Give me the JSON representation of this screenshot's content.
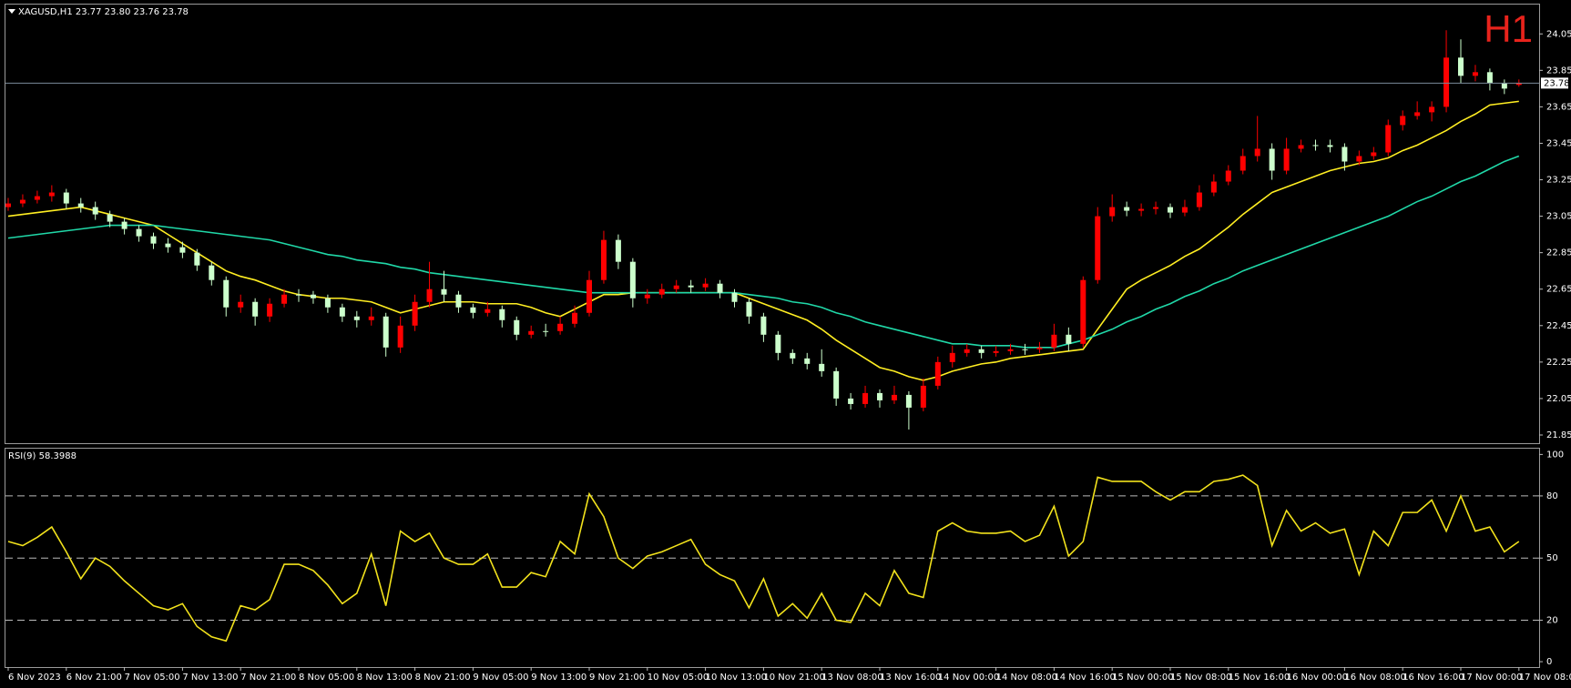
{
  "chart_data": [
    {
      "type": "candlestick",
      "title": "XAGUSD,H1  23.77 23.80 23.76 23.78",
      "corner_label": "H1",
      "up_color": "#ff0000",
      "down_color": "#ccffcc",
      "categories": [
        "6 Nov 2023",
        null,
        null,
        null,
        "6 Nov 21:00",
        null,
        null,
        null,
        "7 Nov 05:00",
        null,
        null,
        null,
        "7 Nov 13:00",
        null,
        null,
        null,
        "7 Nov 21:00",
        null,
        null,
        null,
        "8 Nov 05:00",
        null,
        null,
        null,
        "8 Nov 13:00",
        null,
        null,
        null,
        "8 Nov 21:00",
        null,
        null,
        null,
        "9 Nov 05:00",
        null,
        null,
        null,
        "9 Nov 13:00",
        null,
        null,
        null,
        "9 Nov 21:00",
        null,
        null,
        null,
        "10 Nov 05:00",
        null,
        null,
        null,
        "10 Nov 13:00",
        null,
        null,
        null,
        "10 Nov 21:00",
        null,
        null,
        null,
        "13 Nov 08:00",
        null,
        null,
        null,
        "13 Nov 16:00",
        null,
        null,
        null,
        "14 Nov 00:00",
        null,
        null,
        null,
        "14 Nov 08:00",
        null,
        null,
        null,
        "14 Nov 16:00",
        null,
        null,
        null,
        "15 Nov 00:00",
        null,
        null,
        null,
        "15 Nov 08:00",
        null,
        null,
        null,
        "15 Nov 16:00",
        null,
        null,
        null,
        "16 Nov 00:00",
        null,
        null,
        null,
        "16 Nov 08:00",
        null,
        null,
        null,
        "16 Nov 16:00",
        null,
        null,
        null,
        "17 Nov 00:00",
        null,
        null,
        null,
        "17 Nov 08:00"
      ],
      "ohlc": [
        [
          23.1,
          23.15,
          23.08,
          23.12
        ],
        [
          23.12,
          23.17,
          23.1,
          23.14
        ],
        [
          23.14,
          23.19,
          23.12,
          23.16
        ],
        [
          23.16,
          23.22,
          23.13,
          23.18
        ],
        [
          23.18,
          23.2,
          23.09,
          23.12
        ],
        [
          23.12,
          23.15,
          23.07,
          23.1
        ],
        [
          23.1,
          23.13,
          23.03,
          23.06
        ],
        [
          23.06,
          23.08,
          22.99,
          23.02
        ],
        [
          23.02,
          23.04,
          22.95,
          22.98
        ],
        [
          22.98,
          23.0,
          22.91,
          22.94
        ],
        [
          22.94,
          22.96,
          22.87,
          22.9
        ],
        [
          22.9,
          22.93,
          22.85,
          22.88
        ],
        [
          22.88,
          22.91,
          22.82,
          22.85
        ],
        [
          22.85,
          22.87,
          22.75,
          22.78
        ],
        [
          22.78,
          22.8,
          22.67,
          22.7
        ],
        [
          22.7,
          22.72,
          22.5,
          22.55
        ],
        [
          22.55,
          22.62,
          22.52,
          22.58
        ],
        [
          22.58,
          22.6,
          22.45,
          22.5
        ],
        [
          22.5,
          22.6,
          22.47,
          22.57
        ],
        [
          22.57,
          22.65,
          22.55,
          22.62
        ],
        [
          22.62,
          22.65,
          22.58,
          22.62
        ],
        [
          22.62,
          22.64,
          22.57,
          22.6
        ],
        [
          22.6,
          22.62,
          22.52,
          22.55
        ],
        [
          22.55,
          22.57,
          22.47,
          22.5
        ],
        [
          22.5,
          22.53,
          22.44,
          22.48
        ],
        [
          22.48,
          22.55,
          22.45,
          22.5
        ],
        [
          22.5,
          22.52,
          22.28,
          22.33
        ],
        [
          22.33,
          22.5,
          22.3,
          22.45
        ],
        [
          22.45,
          22.62,
          22.42,
          22.58
        ],
        [
          22.58,
          22.8,
          22.55,
          22.65
        ],
        [
          22.65,
          22.75,
          22.58,
          22.62
        ],
        [
          22.62,
          22.64,
          22.52,
          22.55
        ],
        [
          22.55,
          22.57,
          22.49,
          22.52
        ],
        [
          22.52,
          22.58,
          22.5,
          22.54
        ],
        [
          22.54,
          22.56,
          22.44,
          22.48
        ],
        [
          22.48,
          22.5,
          22.37,
          22.4
        ],
        [
          22.4,
          22.45,
          22.38,
          22.42
        ],
        [
          22.42,
          22.46,
          22.39,
          22.42
        ],
        [
          22.42,
          22.5,
          22.4,
          22.46
        ],
        [
          22.46,
          22.56,
          22.44,
          22.52
        ],
        [
          22.52,
          22.75,
          22.5,
          22.7
        ],
        [
          22.7,
          22.97,
          22.68,
          22.92
        ],
        [
          22.92,
          22.95,
          22.76,
          22.8
        ],
        [
          22.8,
          22.82,
          22.55,
          22.6
        ],
        [
          22.6,
          22.65,
          22.57,
          22.62
        ],
        [
          22.62,
          22.68,
          22.6,
          22.65
        ],
        [
          22.65,
          22.7,
          22.63,
          22.67
        ],
        [
          22.67,
          22.7,
          22.63,
          22.66
        ],
        [
          22.66,
          22.71,
          22.64,
          22.68
        ],
        [
          22.68,
          22.7,
          22.6,
          22.63
        ],
        [
          22.63,
          22.65,
          22.55,
          22.58
        ],
        [
          22.58,
          22.6,
          22.46,
          22.5
        ],
        [
          22.5,
          22.52,
          22.36,
          22.4
        ],
        [
          22.4,
          22.42,
          22.26,
          22.3
        ],
        [
          22.3,
          22.32,
          22.24,
          22.27
        ],
        [
          22.27,
          22.3,
          22.21,
          22.24
        ],
        [
          22.24,
          22.32,
          22.17,
          22.2
        ],
        [
          22.2,
          22.22,
          22.01,
          22.05
        ],
        [
          22.05,
          22.08,
          21.99,
          22.02
        ],
        [
          22.02,
          22.12,
          22.0,
          22.08
        ],
        [
          22.08,
          22.1,
          22.0,
          22.04
        ],
        [
          22.04,
          22.12,
          22.02,
          22.07
        ],
        [
          22.07,
          22.09,
          21.88,
          22.0
        ],
        [
          22.0,
          22.16,
          21.98,
          22.12
        ],
        [
          22.12,
          22.28,
          22.1,
          22.25
        ],
        [
          22.25,
          22.34,
          22.22,
          22.3
        ],
        [
          22.3,
          22.35,
          22.28,
          22.32
        ],
        [
          22.32,
          22.34,
          22.27,
          22.3
        ],
        [
          22.3,
          22.34,
          22.28,
          22.31
        ],
        [
          22.31,
          22.35,
          22.29,
          22.32
        ],
        [
          22.32,
          22.35,
          22.29,
          22.32
        ],
        [
          22.32,
          22.36,
          22.3,
          22.33
        ],
        [
          22.33,
          22.46,
          22.31,
          22.4
        ],
        [
          22.4,
          22.44,
          22.31,
          22.35
        ],
        [
          22.35,
          22.72,
          22.33,
          22.7
        ],
        [
          22.7,
          23.1,
          22.68,
          23.05
        ],
        [
          23.05,
          23.17,
          23.02,
          23.1
        ],
        [
          23.1,
          23.13,
          23.05,
          23.08
        ],
        [
          23.08,
          23.12,
          23.05,
          23.09
        ],
        [
          23.09,
          23.13,
          23.06,
          23.1
        ],
        [
          23.1,
          23.12,
          23.04,
          23.07
        ],
        [
          23.07,
          23.14,
          23.05,
          23.1
        ],
        [
          23.1,
          23.22,
          23.08,
          23.18
        ],
        [
          23.18,
          23.28,
          23.16,
          23.24
        ],
        [
          23.24,
          23.33,
          23.22,
          23.3
        ],
        [
          23.3,
          23.42,
          23.28,
          23.38
        ],
        [
          23.38,
          23.6,
          23.35,
          23.42
        ],
        [
          23.42,
          23.45,
          23.25,
          23.3
        ],
        [
          23.3,
          23.48,
          23.28,
          23.42
        ],
        [
          23.42,
          23.47,
          23.4,
          23.44
        ],
        [
          23.44,
          23.47,
          23.41,
          23.44
        ],
        [
          23.44,
          23.47,
          23.4,
          23.43
        ],
        [
          23.43,
          23.45,
          23.3,
          23.35
        ],
        [
          23.35,
          23.41,
          23.33,
          23.38
        ],
        [
          23.38,
          23.43,
          23.36,
          23.4
        ],
        [
          23.4,
          23.58,
          23.38,
          23.55
        ],
        [
          23.55,
          23.63,
          23.52,
          23.6
        ],
        [
          23.6,
          23.68,
          23.58,
          23.62
        ],
        [
          23.62,
          23.68,
          23.57,
          23.65
        ],
        [
          23.65,
          24.07,
          23.62,
          23.92
        ],
        [
          23.92,
          24.02,
          23.78,
          23.82
        ],
        [
          23.82,
          23.88,
          23.79,
          23.84
        ],
        [
          23.84,
          23.86,
          23.74,
          23.78
        ],
        [
          23.78,
          23.8,
          23.72,
          23.75
        ],
        [
          23.77,
          23.8,
          23.76,
          23.78
        ]
      ],
      "series": [
        {
          "color": "#ffee22",
          "values": [
            23.05,
            23.06,
            23.07,
            23.08,
            23.09,
            23.1,
            23.08,
            23.06,
            23.04,
            23.02,
            23.0,
            22.95,
            22.9,
            22.85,
            22.8,
            22.75,
            22.72,
            22.7,
            22.67,
            22.64,
            22.62,
            22.61,
            22.6,
            22.6,
            22.59,
            22.58,
            22.55,
            22.52,
            22.54,
            22.56,
            22.58,
            22.58,
            22.58,
            22.57,
            22.57,
            22.57,
            22.55,
            22.52,
            22.5,
            22.54,
            22.58,
            22.62,
            22.62,
            22.63,
            22.63,
            22.63,
            22.63,
            22.63,
            22.63,
            22.63,
            22.63,
            22.6,
            22.57,
            22.54,
            22.51,
            22.48,
            22.43,
            22.37,
            22.32,
            22.27,
            22.22,
            22.2,
            22.17,
            22.15,
            22.17,
            22.2,
            22.22,
            22.24,
            22.25,
            22.27,
            22.28,
            22.29,
            22.3,
            22.31,
            22.32,
            22.43,
            22.54,
            22.65,
            22.7,
            22.74,
            22.78,
            22.83,
            22.87,
            22.93,
            22.99,
            23.06,
            23.12,
            23.18,
            23.21,
            23.24,
            23.27,
            23.3,
            23.32,
            23.34,
            23.35,
            23.37,
            23.41,
            23.44,
            23.48,
            23.52,
            23.57,
            23.61,
            23.66,
            23.67,
            23.68
          ]
        },
        {
          "color": "#20d8a8",
          "values": [
            22.93,
            22.94,
            22.95,
            22.96,
            22.97,
            22.98,
            22.99,
            23.0,
            23.0,
            23.0,
            23.0,
            22.99,
            22.98,
            22.97,
            22.96,
            22.95,
            22.94,
            22.93,
            22.92,
            22.9,
            22.88,
            22.86,
            22.84,
            22.83,
            22.81,
            22.8,
            22.79,
            22.77,
            22.76,
            22.74,
            22.73,
            22.72,
            22.71,
            22.7,
            22.69,
            22.68,
            22.67,
            22.66,
            22.65,
            22.64,
            22.63,
            22.63,
            22.63,
            22.63,
            22.63,
            22.63,
            22.63,
            22.63,
            22.63,
            22.63,
            22.63,
            22.62,
            22.61,
            22.6,
            22.58,
            22.57,
            22.55,
            22.52,
            22.5,
            22.47,
            22.45,
            22.43,
            22.41,
            22.39,
            22.37,
            22.35,
            22.35,
            22.34,
            22.34,
            22.34,
            22.33,
            22.33,
            22.33,
            22.35,
            22.37,
            22.4,
            22.43,
            22.47,
            22.5,
            22.54,
            22.57,
            22.61,
            22.64,
            22.68,
            22.71,
            22.75,
            22.78,
            22.81,
            22.84,
            22.87,
            22.9,
            22.93,
            22.96,
            22.99,
            23.02,
            23.05,
            23.09,
            23.13,
            23.16,
            23.2,
            23.24,
            23.27,
            23.31,
            23.35,
            23.38
          ]
        }
      ],
      "last_price": 23.78,
      "ylim": [
        21.805,
        24.211
      ],
      "yticks": [
        24.05,
        23.85,
        23.65,
        23.45,
        23.25,
        23.05,
        22.85,
        22.65,
        22.45,
        22.25,
        22.05,
        21.85
      ]
    },
    {
      "type": "line",
      "title": "RSI(9) 58.3988",
      "series": [
        {
          "color": "#f2e21c",
          "values": [
            58,
            56,
            60,
            65,
            53,
            40,
            50,
            46,
            39,
            33,
            27,
            25,
            28,
            17,
            12,
            10,
            27,
            25,
            30,
            47,
            47,
            44,
            37,
            28,
            33,
            52,
            27,
            63,
            58,
            62,
            50,
            47,
            47,
            52,
            36,
            36,
            43,
            41,
            58,
            52,
            81,
            70,
            50,
            45,
            51,
            53,
            56,
            59,
            47,
            42,
            39,
            26,
            40,
            22,
            28,
            21,
            33,
            20,
            19,
            33,
            27,
            44,
            33,
            31,
            63,
            67,
            63,
            62,
            62,
            63,
            58,
            61,
            75,
            51,
            58,
            89,
            87,
            87,
            87,
            82,
            78,
            82,
            82,
            87,
            88,
            90,
            85,
            56,
            73,
            63,
            67,
            62,
            64,
            42,
            63,
            56,
            72,
            72,
            78,
            63,
            80,
            63,
            65,
            53,
            58
          ]
        }
      ],
      "levels": [
        80,
        50,
        20
      ],
      "ylim": [
        -2.6,
        102.8
      ],
      "yticks": [
        100,
        80,
        50,
        20,
        0
      ]
    }
  ]
}
